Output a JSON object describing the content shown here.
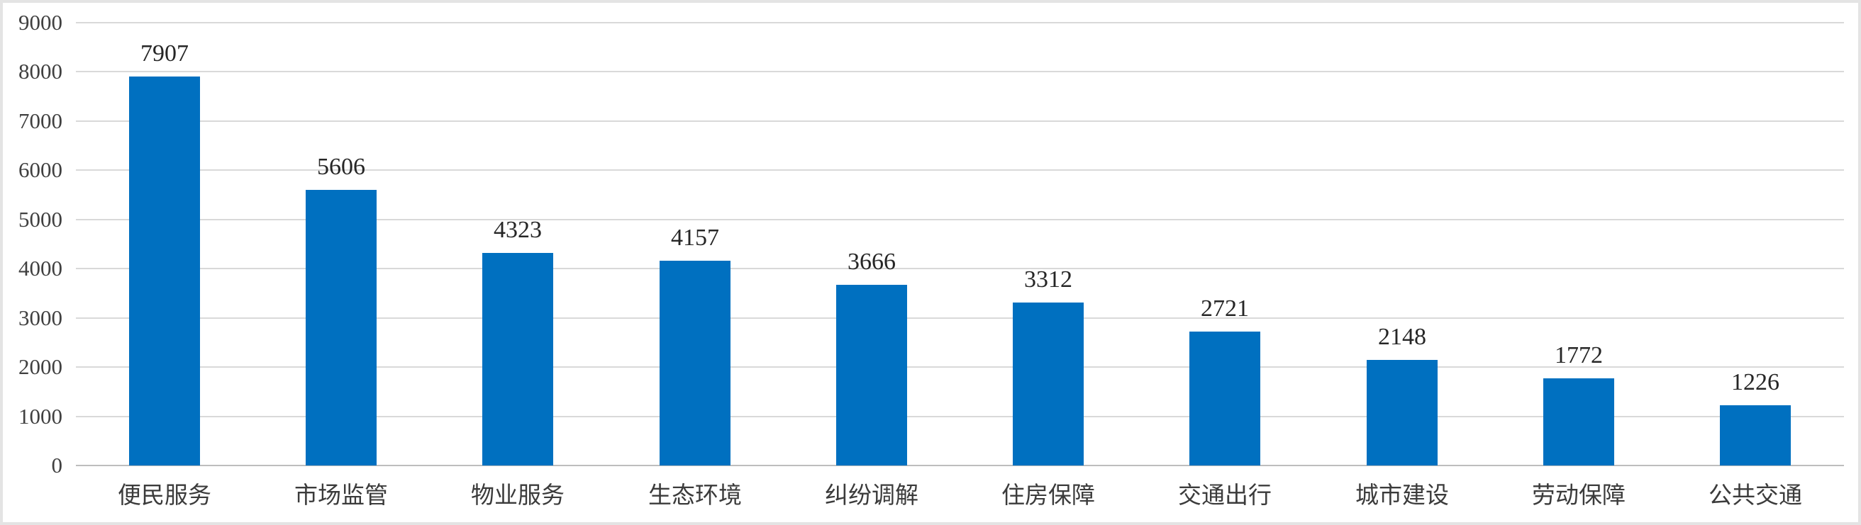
{
  "chart_data": {
    "type": "bar",
    "categories": [
      "便民服务",
      "市场监管",
      "物业服务",
      "生态环境",
      "纠纷调解",
      "住房保障",
      "交通出行",
      "城市建设",
      "劳动保障",
      "公共交通"
    ],
    "values": [
      7907,
      5606,
      4323,
      4157,
      3666,
      3312,
      2721,
      2148,
      1772,
      1226
    ],
    "title": "",
    "xlabel": "",
    "ylabel": "",
    "ylim": [
      0,
      9000
    ],
    "y_tick_interval": 1000,
    "y_tick_labels": [
      "0",
      "1000",
      "2000",
      "3000",
      "4000",
      "5000",
      "6000",
      "7000",
      "8000",
      "9000"
    ],
    "grid": true,
    "legend": false,
    "bar_color": "#0070C0",
    "gridline_color": "#d9d9d9",
    "baseline_color": "#bdbdbd",
    "value_label_color": "#262626",
    "tick_label_color": "#404040"
  }
}
